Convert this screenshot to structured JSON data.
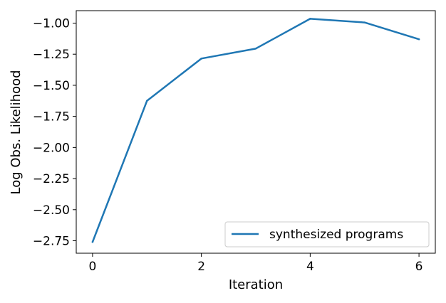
{
  "chart_data": {
    "type": "line",
    "title": "",
    "xlabel": "Iteration",
    "ylabel": "Log Obs. Likelihood",
    "xlim": [
      -0.3,
      6.3
    ],
    "ylim": [
      -2.85,
      -0.9
    ],
    "x_ticks": [
      0,
      2,
      4,
      6
    ],
    "x_tick_labels": [
      "0",
      "2",
      "4",
      "6"
    ],
    "y_ticks": [
      -2.75,
      -2.5,
      -2.25,
      -2.0,
      -1.75,
      -1.5,
      -1.25,
      -1.0
    ],
    "y_tick_labels": [
      "−2.75",
      "−2.50",
      "−2.25",
      "−2.00",
      "−1.75",
      "−1.50",
      "−1.25",
      "−1.00"
    ],
    "grid": false,
    "legend_position": "lower-right",
    "series": [
      {
        "name": "synthesized programs",
        "color": "#1f77b4",
        "x": [
          0,
          1,
          2,
          3,
          4,
          5,
          6
        ],
        "values": [
          -2.76,
          -1.625,
          -1.285,
          -1.205,
          -0.965,
          -0.995,
          -1.13
        ]
      }
    ]
  }
}
